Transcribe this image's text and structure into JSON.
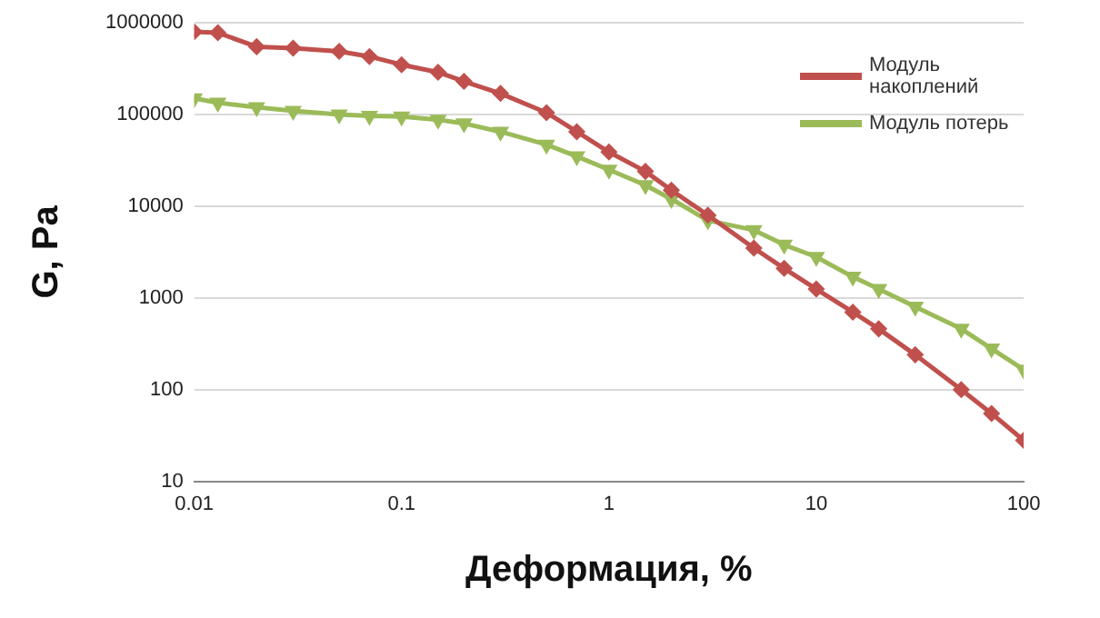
{
  "chart_data": {
    "type": "line",
    "xlabel": "Деформация, %",
    "ylabel": "G, Pa",
    "log": "xy",
    "grid": "y",
    "legend": "top right",
    "x": [
      0.01,
      0.013,
      0.02,
      0.03,
      0.05,
      0.07,
      0.1,
      0.15,
      0.2,
      0.3,
      0.5,
      0.7,
      1,
      1.5,
      2,
      3,
      5,
      7,
      10,
      15,
      20,
      30,
      50,
      70,
      100
    ],
    "xlim": [
      0.01,
      100
    ],
    "xticks": [
      0.01,
      0.1,
      1,
      10,
      100
    ],
    "ylim": [
      10,
      1000000
    ],
    "yticks": [
      10,
      100,
      1000,
      10000,
      100000,
      1000000
    ],
    "series": [
      {
        "name": "Модуль накоплений",
        "color": "#c0504d",
        "marker": "diamond",
        "values": [
          800000,
          780000,
          550000,
          530000,
          490000,
          430000,
          350000,
          290000,
          230000,
          170000,
          105000,
          65000,
          39000,
          24000,
          15000,
          8000,
          3500,
          2100,
          1250,
          700,
          460,
          240,
          100,
          55,
          28
        ]
      },
      {
        "name": "Модуль потерь",
        "color": "#9bbb59",
        "marker": "triangle",
        "values": [
          150000,
          135000,
          120000,
          110000,
          100000,
          97000,
          95000,
          88000,
          80000,
          65000,
          47000,
          35000,
          25000,
          17000,
          12000,
          7000,
          5500,
          3800,
          2800,
          1700,
          1250,
          800,
          460,
          280,
          165
        ]
      }
    ]
  }
}
